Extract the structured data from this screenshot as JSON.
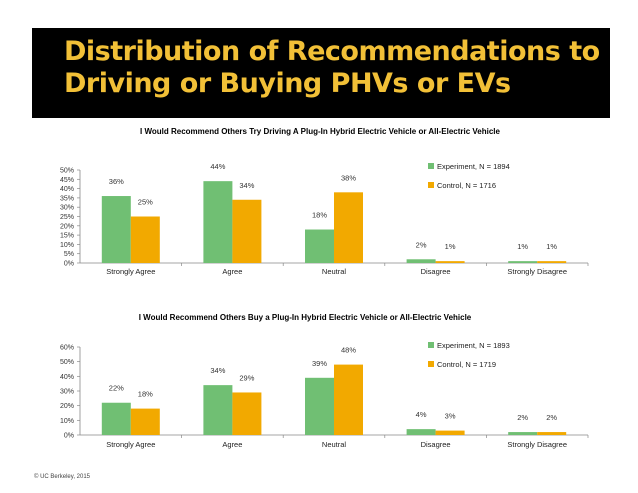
{
  "slide": {
    "title": "Distribution of Recommendations to Driving or Buying PHVs or EVs",
    "title_color": "#f2c037",
    "copyright": "© UC Berkeley, 2015"
  },
  "colors": {
    "experiment": "#70bf73",
    "control": "#f2a900"
  },
  "chart_data": [
    {
      "type": "bar",
      "title": "I Would Recommend Others Try Driving A Plug-In Hybrid Electric Vehicle or All-Electric Vehicle",
      "categories": [
        "Strongly Agree",
        "Agree",
        "Neutral",
        "Disagree",
        "Strongly Disagree"
      ],
      "series": [
        {
          "name": "Experiment, N = 1894",
          "values": [
            36,
            44,
            18,
            2,
            1
          ],
          "labels": [
            "36%",
            "44%",
            "18%",
            "2%",
            "1%"
          ]
        },
        {
          "name": "Control, N = 1716",
          "values": [
            25,
            34,
            38,
            1,
            1
          ],
          "labels": [
            "25%",
            "34%",
            "38%",
            "1%",
            "1%"
          ]
        }
      ],
      "yticks": [
        "0%",
        "5%",
        "10%",
        "15%",
        "20%",
        "25%",
        "30%",
        "35%",
        "40%",
        "45%",
        "50%"
      ],
      "ylim": [
        0,
        50
      ],
      "xlabel": "",
      "ylabel": "",
      "legend": "top-right",
      "grid": false
    },
    {
      "type": "bar",
      "title": "I Would Recommend Others Buy a Plug-In Hybrid Electric Vehicle or All-Electric Vehicle",
      "categories": [
        "Strongly Agree",
        "Agree",
        "Neutral",
        "Disagree",
        "Strongly Disagree"
      ],
      "series": [
        {
          "name": "Experiment, N = 1893",
          "values": [
            22,
            34,
            39,
            4,
            2
          ],
          "labels": [
            "22%",
            "34%",
            "39%",
            "4%",
            "2%"
          ]
        },
        {
          "name": "Control, N = 1719",
          "values": [
            18,
            29,
            48,
            3,
            2
          ],
          "labels": [
            "18%",
            "29%",
            "48%",
            "3%",
            "2%"
          ]
        }
      ],
      "yticks": [
        "0%",
        "10%",
        "20%",
        "30%",
        "40%",
        "50%",
        "60%"
      ],
      "ylim": [
        0,
        60
      ],
      "xlabel": "",
      "ylabel": "",
      "legend": "top-right",
      "grid": false
    }
  ]
}
